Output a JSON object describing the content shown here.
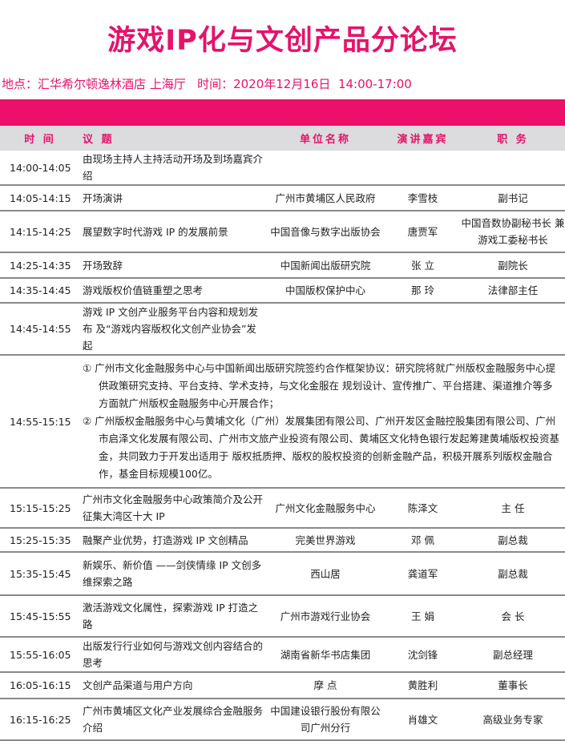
{
  "title": "游戏IP化与文创产品分论坛",
  "info": "地点：汇华希尔顿逸林酒店 上海厅   时间：2020年12月16日  14:00-17:00",
  "header": {
    "time": "时 间",
    "topic": "议 题",
    "unit": "单位名称",
    "speaker": "演讲嘉宾",
    "position": "职 务"
  },
  "rows": [
    {
      "time": "14:00-14:05",
      "topic": "由现场主持人主持活动开场及到场嘉宾介绍",
      "unit": "",
      "speaker": "",
      "position": ""
    },
    {
      "time": "14:05-14:15",
      "topic": "开场演讲",
      "unit": "广州市黄埔区人民政府",
      "speaker": "李雪枝",
      "position": "副书记"
    },
    {
      "time": "14:15-14:25",
      "topic": "展望数字时代游戏 IP 的发展前景",
      "unit": "中国音像与数字出版协会",
      "speaker": "唐贾军",
      "position": "中国音数协副秘书长 兼游戏工委秘书长"
    },
    {
      "time": "14:25-14:35",
      "topic": "开场致辞",
      "unit": "中国新闻出版研究院",
      "speaker": "张  立",
      "position": "副院长"
    },
    {
      "time": "14:35-14:45",
      "topic": "游戏版权价值链重塑之思考",
      "unit": "中国版权保护中心",
      "speaker": "那  玲",
      "position": "法律部主任"
    },
    {
      "time": "14:45-14:55",
      "topic": "游戏 IP 文创产业服务平台内容和规划发布 及“游戏内容版权化文创产业协会”发起",
      "unit": "",
      "speaker": "",
      "position": ""
    },
    {
      "time": "14:55-15:15",
      "items": [
        "① 广州市文化金融服务中心与中国新闻出版研究院签约合作框架协议：研究院将就广州版权金融服务中心提供政策研究支持、平台支持、学术支持，与文化金服在 规划设计、宣传推广、平台搭建、渠道推介等多方面就广州版权金融服务中心开展合作；",
        "② 广州版权金融服务中心与黄埔文化（广州）发展集团有限公司、广州开发区金融控股集团有限公司、广州市启泽文化发展有限公司、广州市文旅产业投资有限公司、黄埔区文化特色银行发起筹建黄埔版权投资基金，共同致力于开发出适用于 版权抵质押、版权的股权投资的创新金融产品，积极开展系列版权金融合作，基金目标规模100亿。"
      ]
    },
    {
      "time": "15:15-15:25",
      "topic": "广州市文化金融服务中心政策简介及公开征集大湾区十大 IP",
      "unit": "广州文化金融服务中心",
      "speaker": "陈泽文",
      "position": "主  任"
    },
    {
      "time": "15:25-15:35",
      "topic": "融聚产业优势，打造游戏 IP 文创精品",
      "unit": "完美世界游戏",
      "speaker": "邓  佩",
      "position": "副总裁"
    },
    {
      "time": "15:35-15:45",
      "topic": "新娱乐、新价值 ——剑侠情缘 IP 文创多维探索之路",
      "unit": "西山居",
      "speaker": "龚道军",
      "position": "副总裁"
    },
    {
      "time": "15:45-15:55",
      "topic": "激活游戏文化属性，探索游戏 IP 打造之路",
      "unit": "广州市游戏行业协会",
      "speaker": "王  娟",
      "position": "会  长"
    },
    {
      "time": "15:55-16:05",
      "topic": "出版发行行业如何与游戏文创内容结合的思考",
      "unit": "湖南省新华书店集团",
      "speaker": "沈剑锋",
      "position": "副总经理"
    },
    {
      "time": "16:05-16:15",
      "topic": "文创产品渠道与用户方向",
      "unit": "摩  点",
      "speaker": "黄胜利",
      "position": "董事长"
    },
    {
      "time": "16:15-16:25",
      "topic": "广州市黄埔区文化产业发展综合金融服务介绍",
      "unit": "中国建设银行股份有限公司广州分行",
      "speaker": "肖雄文",
      "position": "高级业务专家"
    }
  ]
}
